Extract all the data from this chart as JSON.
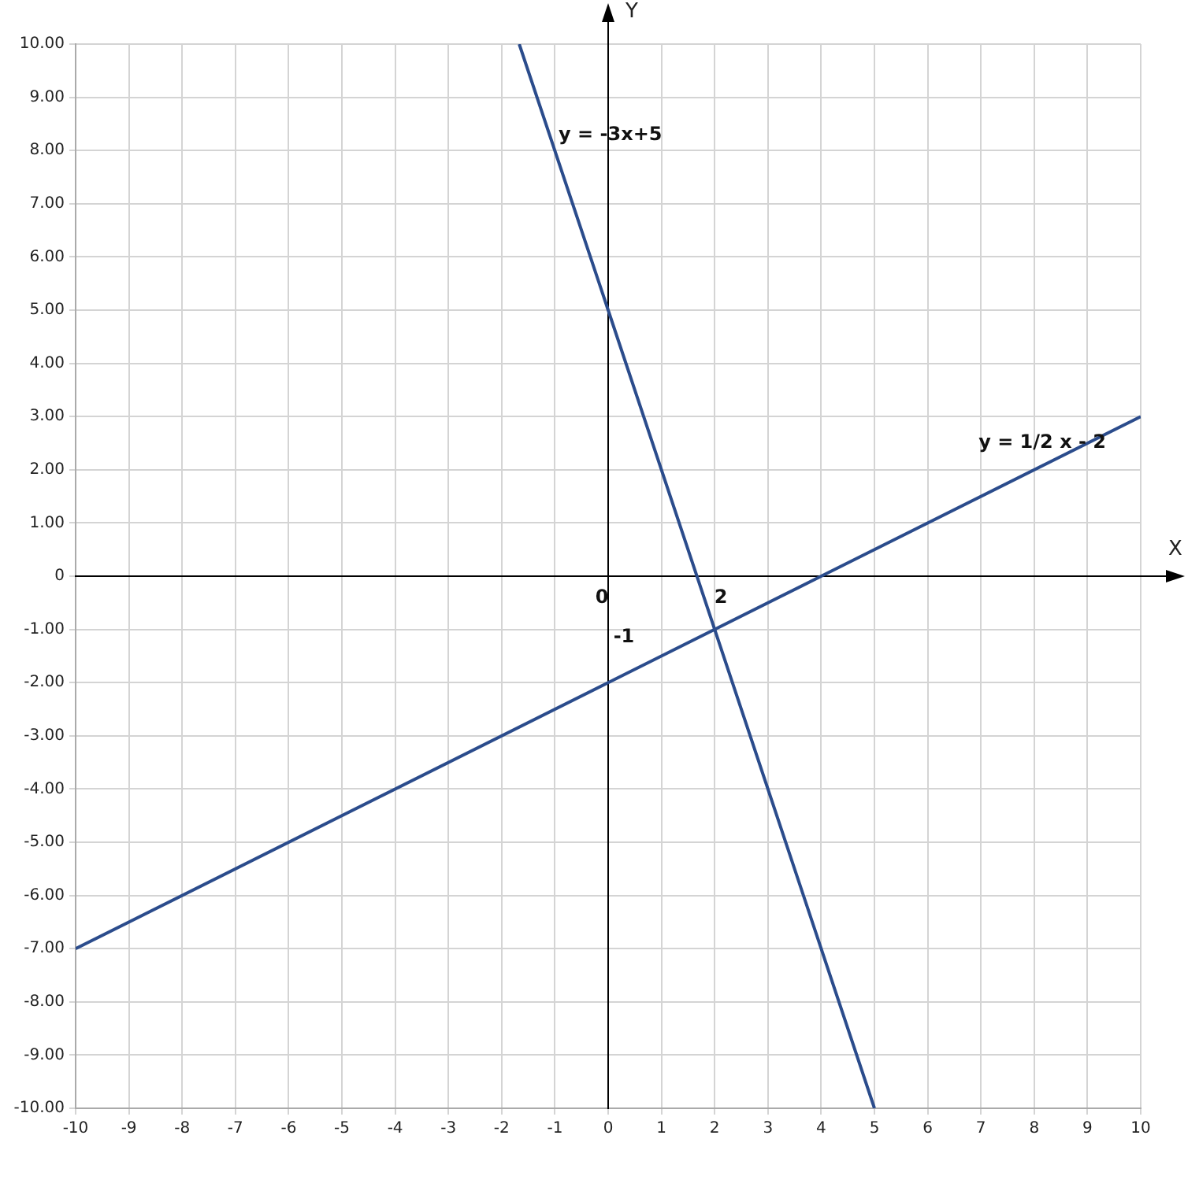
{
  "chart_data": {
    "type": "line",
    "xlabel": "X",
    "ylabel": "Y",
    "xlim": [
      -10,
      10
    ],
    "xticks": [
      -10,
      -9,
      -8,
      -7,
      -6,
      -5,
      -4,
      -3,
      -2,
      -1,
      0,
      1,
      2,
      3,
      4,
      5,
      6,
      7,
      8,
      9,
      10
    ],
    "ylim": [
      -10,
      10
    ],
    "yticks": [
      {
        "value": 10,
        "label": "10.00"
      },
      {
        "value": 9,
        "label": "9.00"
      },
      {
        "value": 8,
        "label": "8.00"
      },
      {
        "value": 7,
        "label": "7.00"
      },
      {
        "value": 6,
        "label": "6.00"
      },
      {
        "value": 5,
        "label": "5.00"
      },
      {
        "value": 4,
        "label": "4.00"
      },
      {
        "value": 3,
        "label": "3.00"
      },
      {
        "value": 2,
        "label": "2.00"
      },
      {
        "value": 1,
        "label": "1.00"
      },
      {
        "value": 0,
        "label": "0"
      },
      {
        "value": -1,
        "label": "-1.00"
      },
      {
        "value": -2,
        "label": "-2.00"
      },
      {
        "value": -3,
        "label": "-3.00"
      },
      {
        "value": -4,
        "label": "-4.00"
      },
      {
        "value": -5,
        "label": "-5.00"
      },
      {
        "value": -6,
        "label": "-6.00"
      },
      {
        "value": -7,
        "label": "-7.00"
      },
      {
        "value": -8,
        "label": "-8.00"
      },
      {
        "value": -9,
        "label": "-9.00"
      },
      {
        "value": -10,
        "label": "-10.00"
      }
    ],
    "series": [
      {
        "name": "y = -3x+5",
        "color": "#2b4c8c",
        "x": [
          -1.67,
          0,
          2,
          5
        ],
        "values": [
          10,
          5,
          -1,
          -10
        ]
      },
      {
        "name": "y = 1/2 x - 2",
        "color": "#2b4c8c",
        "x": [
          -10,
          0,
          4,
          10
        ],
        "values": [
          -7,
          -2,
          0,
          3
        ]
      }
    ],
    "annotations": [
      "0",
      "2",
      "-1"
    ],
    "grid": true,
    "marker": "none",
    "line_style": "solid"
  }
}
